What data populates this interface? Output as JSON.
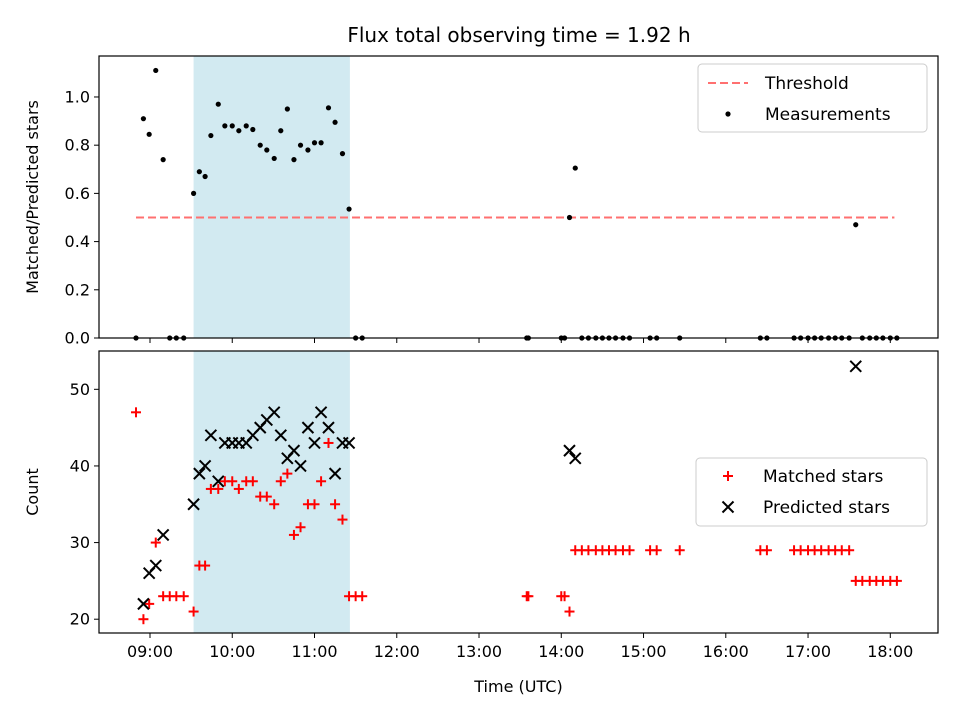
{
  "figure": {
    "title": "Flux total observing time = 1.92 h",
    "xlabel": "Time (UTC)",
    "x_tick_labels": [
      "09:00",
      "10:00",
      "11:00",
      "12:00",
      "13:00",
      "14:00",
      "15:00",
      "16:00",
      "17:00",
      "18:00"
    ],
    "colors": {
      "shade": "#add8e6",
      "threshold": "#ff7070",
      "measurement": "#000000",
      "matched": "#ff0000",
      "predicted": "#000000"
    }
  },
  "chart_data": [
    {
      "type": "scatter",
      "panel": "top",
      "ylabel": "Matched/Predicted stars",
      "xlim": [
        8.38,
        18.58
      ],
      "ylim": [
        0,
        1.17
      ],
      "y_ticks": [
        0.0,
        0.2,
        0.4,
        0.6,
        0.8,
        1.0
      ],
      "y_tick_labels": [
        "0.0",
        "0.2",
        "0.4",
        "0.6",
        "0.8",
        "1.0"
      ],
      "shaded_region": [
        9.53,
        11.43
      ],
      "legend": {
        "placement": "upper right",
        "entries": [
          "Threshold",
          "Measurements"
        ]
      },
      "series": [
        {
          "name": "Threshold",
          "style": "dashed-line",
          "x": [
            8.83,
            18.05
          ],
          "y": [
            0.5,
            0.5
          ]
        },
        {
          "name": "Measurements",
          "style": "dot",
          "x": [
            8.83,
            8.92,
            8.99,
            9.07,
            9.16,
            9.24,
            9.32,
            9.41,
            9.53,
            9.6,
            9.67,
            9.74,
            9.83,
            9.91,
            10.0,
            10.08,
            10.17,
            10.25,
            10.34,
            10.42,
            10.51,
            10.59,
            10.67,
            10.75,
            10.83,
            10.92,
            11.0,
            11.08,
            11.17,
            11.25,
            11.34,
            11.42,
            11.5,
            11.58,
            13.58,
            13.6,
            14.0,
            14.04,
            14.1,
            14.17,
            14.25,
            14.33,
            14.42,
            14.5,
            14.58,
            14.66,
            14.75,
            14.83,
            15.08,
            15.16,
            15.44,
            16.42,
            16.5,
            16.83,
            16.91,
            17.0,
            17.08,
            17.16,
            17.25,
            17.33,
            17.41,
            17.5,
            17.58,
            17.66,
            17.75,
            17.83,
            17.91,
            18.0,
            18.08
          ],
          "y": [
            0.0,
            0.91,
            0.845,
            1.11,
            0.74,
            0.0,
            0.0,
            0.0,
            0.6,
            0.69,
            0.67,
            0.84,
            0.97,
            0.88,
            0.88,
            0.86,
            0.88,
            0.865,
            0.8,
            0.78,
            0.745,
            0.86,
            0.95,
            0.74,
            0.8,
            0.78,
            0.81,
            0.81,
            0.955,
            0.895,
            0.765,
            0.535,
            0.0,
            0.0,
            0.0,
            0.0,
            0.0,
            0.0,
            0.5,
            0.705,
            0.0,
            0.0,
            0.0,
            0.0,
            0.0,
            0.0,
            0.0,
            0.0,
            0.0,
            0.0,
            0.0,
            0.0,
            0.0,
            0.0,
            0.0,
            0.0,
            0.0,
            0.0,
            0.0,
            0.0,
            0.0,
            0.0,
            0.47,
            0.0,
            0.0,
            0.0,
            0.0,
            0.0,
            0.0
          ]
        }
      ]
    },
    {
      "type": "scatter",
      "panel": "bottom",
      "ylabel": "Count",
      "xlim": [
        8.38,
        18.58
      ],
      "ylim": [
        18.2,
        55.0
      ],
      "y_ticks": [
        20,
        30,
        40,
        50
      ],
      "y_tick_labels": [
        "20",
        "30",
        "40",
        "50"
      ],
      "shaded_region": [
        9.53,
        11.43
      ],
      "legend": {
        "placement": "center right",
        "entries": [
          "Matched stars",
          "Predicted stars"
        ]
      },
      "series": [
        {
          "name": "Matched stars",
          "style": "plus",
          "x": [
            8.83,
            8.92,
            8.99,
            9.07,
            9.16,
            9.24,
            9.32,
            9.41,
            9.53,
            9.6,
            9.67,
            9.74,
            9.83,
            9.91,
            10.0,
            10.08,
            10.17,
            10.25,
            10.34,
            10.42,
            10.51,
            10.59,
            10.67,
            10.75,
            10.83,
            10.92,
            11.0,
            11.08,
            11.17,
            11.25,
            11.34,
            11.42,
            11.5,
            11.58,
            13.58,
            13.6,
            14.0,
            14.04,
            14.1,
            14.17,
            14.25,
            14.33,
            14.42,
            14.5,
            14.58,
            14.66,
            14.75,
            14.83,
            15.08,
            15.16,
            15.44,
            16.42,
            16.5,
            16.83,
            16.91,
            17.0,
            17.08,
            17.16,
            17.25,
            17.33,
            17.41,
            17.5,
            17.58,
            17.66,
            17.75,
            17.83,
            17.91,
            18.0,
            18.08
          ],
          "y": [
            47,
            20,
            22,
            30,
            23,
            23,
            23,
            23,
            21,
            27,
            27,
            37,
            37,
            38,
            38,
            37,
            38,
            38,
            36,
            36,
            35,
            38,
            39,
            31,
            32,
            35,
            35,
            38,
            43,
            35,
            33,
            23,
            23,
            23,
            23,
            23,
            23,
            23,
            21,
            29,
            29,
            29,
            29,
            29,
            29,
            29,
            29,
            29,
            29,
            29,
            29,
            29,
            29,
            29,
            29,
            29,
            29,
            29,
            29,
            29,
            29,
            29,
            25,
            25,
            25,
            25,
            25,
            25,
            25
          ]
        },
        {
          "name": "Predicted stars",
          "style": "cross",
          "x": [
            8.92,
            8.99,
            9.07,
            9.16,
            9.53,
            9.6,
            9.67,
            9.74,
            9.83,
            9.91,
            10.0,
            10.08,
            10.17,
            10.25,
            10.34,
            10.42,
            10.51,
            10.59,
            10.67,
            10.75,
            10.83,
            10.92,
            11.0,
            11.08,
            11.17,
            11.25,
            11.34,
            11.42,
            14.1,
            14.17,
            17.58
          ],
          "y": [
            22,
            26,
            27,
            31,
            35,
            39,
            40,
            44,
            38,
            43,
            43,
            43,
            43,
            44,
            45,
            46,
            47,
            44,
            41,
            42,
            40,
            45,
            43,
            47,
            45,
            39,
            43,
            43,
            42,
            41,
            53
          ]
        }
      ]
    }
  ]
}
